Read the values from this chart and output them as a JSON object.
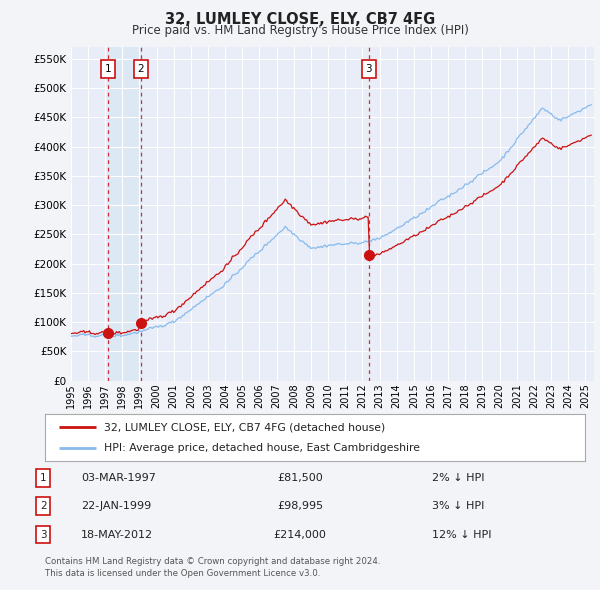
{
  "title": "32, LUMLEY CLOSE, ELY, CB7 4FG",
  "subtitle": "Price paid vs. HM Land Registry's House Price Index (HPI)",
  "ytick_values": [
    0,
    50000,
    100000,
    150000,
    200000,
    250000,
    300000,
    350000,
    400000,
    450000,
    500000,
    550000
  ],
  "xlim_start": 1995.0,
  "xlim_end": 2025.5,
  "ylim_min": 0,
  "ylim_max": 570000,
  "background_color": "#f2f4f8",
  "plot_bg_color": "#e8edf8",
  "grid_color": "#ffffff",
  "hpi_line_color": "#88bbee",
  "price_line_color": "#cc1111",
  "vline_color": "#cc1111",
  "shade_color": "#dde8f5",
  "sale_points": [
    {
      "year": 1997.17,
      "price": 81500,
      "label": "1"
    },
    {
      "year": 1999.07,
      "price": 98995,
      "label": "2"
    },
    {
      "year": 2012.38,
      "price": 214000,
      "label": "3"
    }
  ],
  "legend_entries": [
    {
      "label": "32, LUMLEY CLOSE, ELY, CB7 4FG (detached house)",
      "color": "#cc1111"
    },
    {
      "label": "HPI: Average price, detached house, East Cambridgeshire",
      "color": "#88bbee"
    }
  ],
  "table_rows": [
    {
      "num": "1",
      "date": "03-MAR-1997",
      "price": "£81,500",
      "hpi": "2% ↓ HPI"
    },
    {
      "num": "2",
      "date": "22-JAN-1999",
      "price": "£98,995",
      "hpi": "3% ↓ HPI"
    },
    {
      "num": "3",
      "date": "18-MAY-2012",
      "price": "£214,000",
      "hpi": "12% ↓ HPI"
    }
  ],
  "footer": "Contains HM Land Registry data © Crown copyright and database right 2024.\nThis data is licensed under the Open Government Licence v3.0."
}
